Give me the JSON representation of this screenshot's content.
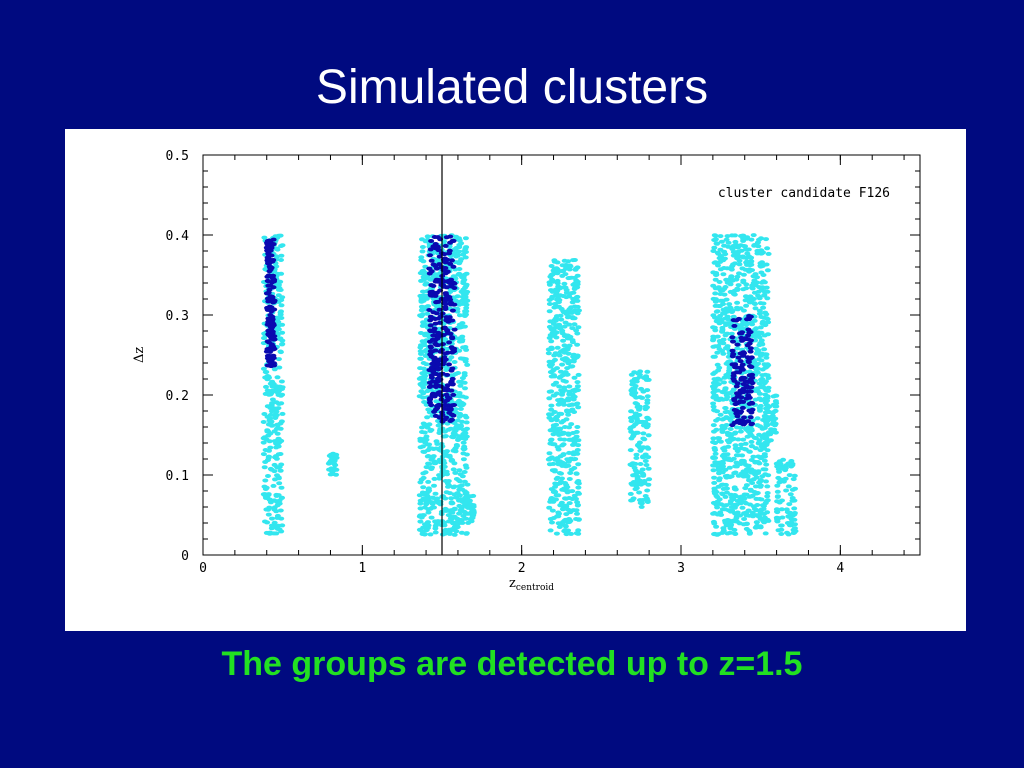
{
  "slide": {
    "title": "Simulated clusters",
    "caption": "The groups are detected up to z=1.5"
  },
  "colors": {
    "background": "#000a80",
    "title": "#ffffff",
    "caption": "#22e022",
    "field_points": "#33e6ef",
    "cluster_points": "#0a0ab0"
  },
  "chart_data": {
    "type": "scatter",
    "xlabel": "z",
    "xlabel_subscript": "centroid",
    "ylabel": "Δz",
    "xlim": [
      0,
      4.5
    ],
    "ylim": [
      0,
      0.5
    ],
    "x_ticks": [
      "0",
      "1",
      "2",
      "3",
      "4"
    ],
    "y_ticks": [
      "0",
      "0.1",
      "0.2",
      "0.3",
      "0.4",
      "0.5"
    ],
    "grid": false,
    "annotation": "cluster candidate F126",
    "reference_line_x": 1.5,
    "series": [
      {
        "color": "#33e6ef",
        "groups": [
          {
            "x": [
              0.38,
              0.5
            ],
            "y": [
              0.025,
              0.4
            ]
          },
          {
            "x": [
              0.79,
              0.84
            ],
            "y": [
              0.1,
              0.13
            ]
          },
          {
            "x": [
              1.36,
              1.66
            ],
            "y": [
              0.025,
              0.4
            ]
          },
          {
            "x": [
              1.61,
              1.7
            ],
            "y": [
              0.04,
              0.08
            ]
          },
          {
            "x": [
              2.17,
              2.36
            ],
            "y": [
              0.025,
              0.37
            ]
          },
          {
            "x": [
              2.68,
              2.8
            ],
            "y": [
              0.06,
              0.23
            ]
          },
          {
            "x": [
              3.2,
              3.55
            ],
            "y": [
              0.025,
              0.4
            ]
          },
          {
            "x": [
              3.52,
              3.6
            ],
            "y": [
              0.14,
              0.2
            ]
          },
          {
            "x": [
              3.6,
              3.72
            ],
            "y": [
              0.025,
              0.12
            ]
          }
        ]
      },
      {
        "color": "#0a0ab0",
        "groups": [
          {
            "x": [
              0.4,
              0.45
            ],
            "y": [
              0.235,
              0.395
            ]
          },
          {
            "x": [
              1.42,
              1.58
            ],
            "y": [
              0.165,
              0.4
            ]
          },
          {
            "x": [
              3.32,
              3.45
            ],
            "y": [
              0.16,
              0.3
            ]
          }
        ]
      }
    ]
  }
}
